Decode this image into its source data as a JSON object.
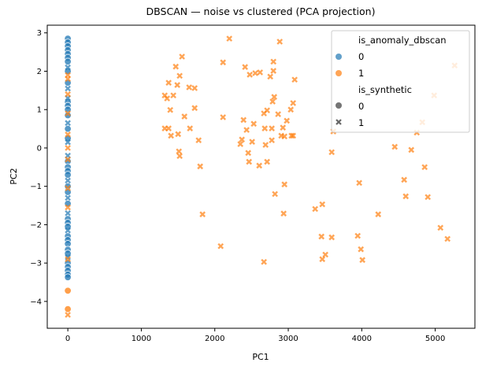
{
  "chart_data": {
    "type": "scatter",
    "title": "DBSCAN — noise vs clustered (PCA projection)",
    "xlabel": "PC1",
    "ylabel": "PC2",
    "xlim": [
      -280,
      5540
    ],
    "ylim": [
      -4.7,
      3.2
    ],
    "xticks": [
      0,
      1000,
      2000,
      3000,
      4000,
      5000
    ],
    "yticks": [
      -4,
      -3,
      -2,
      -1,
      0,
      1,
      2,
      3
    ],
    "grid": false,
    "legend": {
      "placement": "top-right",
      "hue_title": "is_anomaly_dbscan",
      "hue_values": [
        "0",
        "1"
      ],
      "style_title": "is_synthetic",
      "style_values": [
        "0",
        "1"
      ]
    },
    "colors": {
      "0": "#1f77b4",
      "1": "#ff7f0e"
    },
    "markers": {
      "0": "circle",
      "1": "x"
    },
    "point_fields": [
      "PC1",
      "PC2",
      "is_anomaly_dbscan",
      "is_synthetic"
    ],
    "points": [
      [
        0,
        2.85,
        0,
        0
      ],
      [
        0,
        2.75,
        0,
        0
      ],
      [
        0,
        2.65,
        0,
        0
      ],
      [
        0,
        2.55,
        0,
        0
      ],
      [
        0,
        2.45,
        0,
        0
      ],
      [
        0,
        2.35,
        0,
        0
      ],
      [
        0,
        2.25,
        0,
        0
      ],
      [
        0,
        2.0,
        0,
        0
      ],
      [
        0,
        1.7,
        0,
        0
      ],
      [
        0,
        1.2,
        0,
        0
      ],
      [
        0,
        1.1,
        0,
        0
      ],
      [
        0,
        1.0,
        0,
        0
      ],
      [
        0,
        0.85,
        0,
        0
      ],
      [
        0,
        0.5,
        0,
        0
      ],
      [
        0,
        0.25,
        0,
        0
      ],
      [
        0,
        -0.35,
        0,
        0
      ],
      [
        0,
        -0.5,
        0,
        0
      ],
      [
        0,
        -0.6,
        0,
        0
      ],
      [
        0,
        -0.7,
        0,
        0
      ],
      [
        0,
        -1.0,
        0,
        0
      ],
      [
        0,
        -1.15,
        0,
        0
      ],
      [
        0,
        -1.45,
        0,
        0
      ],
      [
        0,
        -1.85,
        0,
        0
      ],
      [
        0,
        -1.95,
        0,
        0
      ],
      [
        0,
        -2.05,
        0,
        0
      ],
      [
        0,
        -2.3,
        0,
        0
      ],
      [
        0,
        -2.4,
        0,
        0
      ],
      [
        0,
        -2.5,
        0,
        0
      ],
      [
        0,
        -2.65,
        0,
        0
      ],
      [
        0,
        -2.75,
        0,
        0
      ],
      [
        0,
        -3.0,
        0,
        0
      ],
      [
        0,
        -3.1,
        0,
        0
      ],
      [
        0,
        -3.2,
        0,
        0
      ],
      [
        0,
        -3.3,
        0,
        0
      ],
      [
        0,
        -3.37,
        0,
        0
      ],
      [
        0,
        2.1,
        0,
        1
      ],
      [
        0,
        1.55,
        0,
        1
      ],
      [
        0,
        1.3,
        0,
        1
      ],
      [
        0,
        0.65,
        0,
        1
      ],
      [
        0,
        0.15,
        0,
        1
      ],
      [
        0,
        -0.2,
        0,
        1
      ],
      [
        0,
        -0.85,
        0,
        1
      ],
      [
        0,
        -1.3,
        0,
        1
      ],
      [
        0,
        -1.7,
        0,
        1
      ],
      [
        0,
        -2.15,
        0,
        1
      ],
      [
        0,
        -2.85,
        0,
        1
      ],
      [
        0,
        -3.72,
        1,
        0
      ],
      [
        0,
        -4.2,
        1,
        0
      ],
      [
        0,
        1.9,
        1,
        1
      ],
      [
        0,
        1.8,
        1,
        1
      ],
      [
        0,
        1.4,
        1,
        1
      ],
      [
        0,
        0.9,
        1,
        1
      ],
      [
        0,
        0.35,
        1,
        1
      ],
      [
        0,
        0.0,
        1,
        1
      ],
      [
        0,
        -0.3,
        1,
        1
      ],
      [
        0,
        -1.05,
        1,
        1
      ],
      [
        0,
        -1.55,
        1,
        1
      ],
      [
        0,
        -2.9,
        1,
        1
      ],
      [
        0,
        -4.35,
        1,
        1
      ],
      [
        2198,
        2.85,
        1,
        1
      ],
      [
        2884,
        2.77,
        1,
        1
      ],
      [
        1554,
        2.38,
        1,
        1
      ],
      [
        1469,
        2.12,
        1,
        1
      ],
      [
        1522,
        1.88,
        1,
        1
      ],
      [
        1372,
        1.7,
        1,
        1
      ],
      [
        1490,
        1.64,
        1,
        1
      ],
      [
        1319,
        1.37,
        1,
        1
      ],
      [
        1351,
        1.29,
        1,
        1
      ],
      [
        1651,
        1.58,
        1,
        1
      ],
      [
        1436,
        1.37,
        1,
        1
      ],
      [
        1726,
        1.56,
        1,
        1
      ],
      [
        1394,
        0.99,
        1,
        1
      ],
      [
        1587,
        0.82,
        1,
        1
      ],
      [
        1726,
        1.04,
        1,
        1
      ],
      [
        1319,
        0.51,
        1,
        1
      ],
      [
        1372,
        0.51,
        1,
        1
      ],
      [
        1404,
        0.32,
        1,
        1
      ],
      [
        1501,
        0.36,
        1,
        1
      ],
      [
        1662,
        0.51,
        1,
        1
      ],
      [
        1780,
        0.2,
        1,
        1
      ],
      [
        1512,
        -0.09,
        1,
        1
      ],
      [
        1522,
        -0.21,
        1,
        1
      ],
      [
        1801,
        -0.48,
        1,
        1
      ],
      [
        2112,
        2.23,
        1,
        1
      ],
      [
        2112,
        0.8,
        1,
        1
      ],
      [
        2412,
        2.11,
        1,
        1
      ],
      [
        2476,
        1.91,
        1,
        1
      ],
      [
        2551,
        1.95,
        1,
        1
      ],
      [
        2616,
        1.97,
        1,
        1
      ],
      [
        2755,
        1.86,
        1,
        1
      ],
      [
        2798,
        2.25,
        1,
        1
      ],
      [
        2798,
        2.01,
        1,
        1
      ],
      [
        2391,
        0.73,
        1,
        1
      ],
      [
        2433,
        0.47,
        1,
        1
      ],
      [
        2530,
        0.63,
        1,
        1
      ],
      [
        2669,
        0.9,
        1,
        1
      ],
      [
        2712,
        0.98,
        1,
        1
      ],
      [
        2680,
        0.51,
        1,
        1
      ],
      [
        2776,
        0.51,
        1,
        1
      ],
      [
        2369,
        0.22,
        1,
        1
      ],
      [
        2348,
        0.1,
        1,
        1
      ],
      [
        2508,
        0.16,
        1,
        1
      ],
      [
        2691,
        0.08,
        1,
        1
      ],
      [
        2776,
        0.2,
        1,
        1
      ],
      [
        2455,
        -0.13,
        1,
        1
      ],
      [
        2466,
        -0.36,
        1,
        1
      ],
      [
        2605,
        -0.46,
        1,
        1
      ],
      [
        2712,
        -0.36,
        1,
        1
      ],
      [
        3087,
        1.78,
        1,
        1
      ],
      [
        2809,
        1.33,
        1,
        1
      ],
      [
        2787,
        1.21,
        1,
        1
      ],
      [
        3066,
        1.17,
        1,
        1
      ],
      [
        3034,
        1.0,
        1,
        1
      ],
      [
        2862,
        0.88,
        1,
        1
      ],
      [
        2980,
        0.71,
        1,
        1
      ],
      [
        2927,
        0.53,
        1,
        1
      ],
      [
        2905,
        0.32,
        1,
        1
      ],
      [
        2948,
        0.3,
        1,
        1
      ],
      [
        3044,
        0.32,
        1,
        1
      ],
      [
        3066,
        0.32,
        1,
        1
      ],
      [
        3591,
        -0.11,
        1,
        1
      ],
      [
        2948,
        -0.95,
        1,
        1
      ],
      [
        2819,
        -1.2,
        1,
        1
      ],
      [
        3613,
        0.43,
        1,
        1
      ],
      [
        1833,
        -1.73,
        1,
        1
      ],
      [
        2937,
        -1.71,
        1,
        1
      ],
      [
        3966,
        -0.91,
        1,
        1
      ],
      [
        3366,
        -1.59,
        1,
        1
      ],
      [
        3463,
        -1.47,
        1,
        1
      ],
      [
        4224,
        -1.73,
        1,
        1
      ],
      [
        2080,
        -2.56,
        1,
        1
      ],
      [
        2669,
        -2.97,
        1,
        1
      ],
      [
        3452,
        -2.31,
        1,
        1
      ],
      [
        3591,
        -2.33,
        1,
        1
      ],
      [
        3945,
        -2.29,
        1,
        1
      ],
      [
        3988,
        -2.64,
        1,
        1
      ],
      [
        3505,
        -2.78,
        1,
        1
      ],
      [
        3463,
        -2.9,
        1,
        1
      ],
      [
        4009,
        -2.92,
        1,
        1
      ],
      [
        5264,
        2.15,
        1,
        1
      ],
      [
        4985,
        1.37,
        1,
        1
      ],
      [
        4824,
        0.67,
        1,
        1
      ],
      [
        4749,
        0.4,
        1,
        1
      ],
      [
        4449,
        0.03,
        1,
        1
      ],
      [
        4674,
        -0.05,
        1,
        1
      ],
      [
        4856,
        -0.5,
        1,
        1
      ],
      [
        4577,
        -0.83,
        1,
        1
      ],
      [
        4599,
        -1.26,
        1,
        1
      ],
      [
        4899,
        -1.28,
        1,
        1
      ],
      [
        5071,
        -2.08,
        1,
        1
      ],
      [
        5167,
        -2.37,
        1,
        1
      ]
    ]
  }
}
